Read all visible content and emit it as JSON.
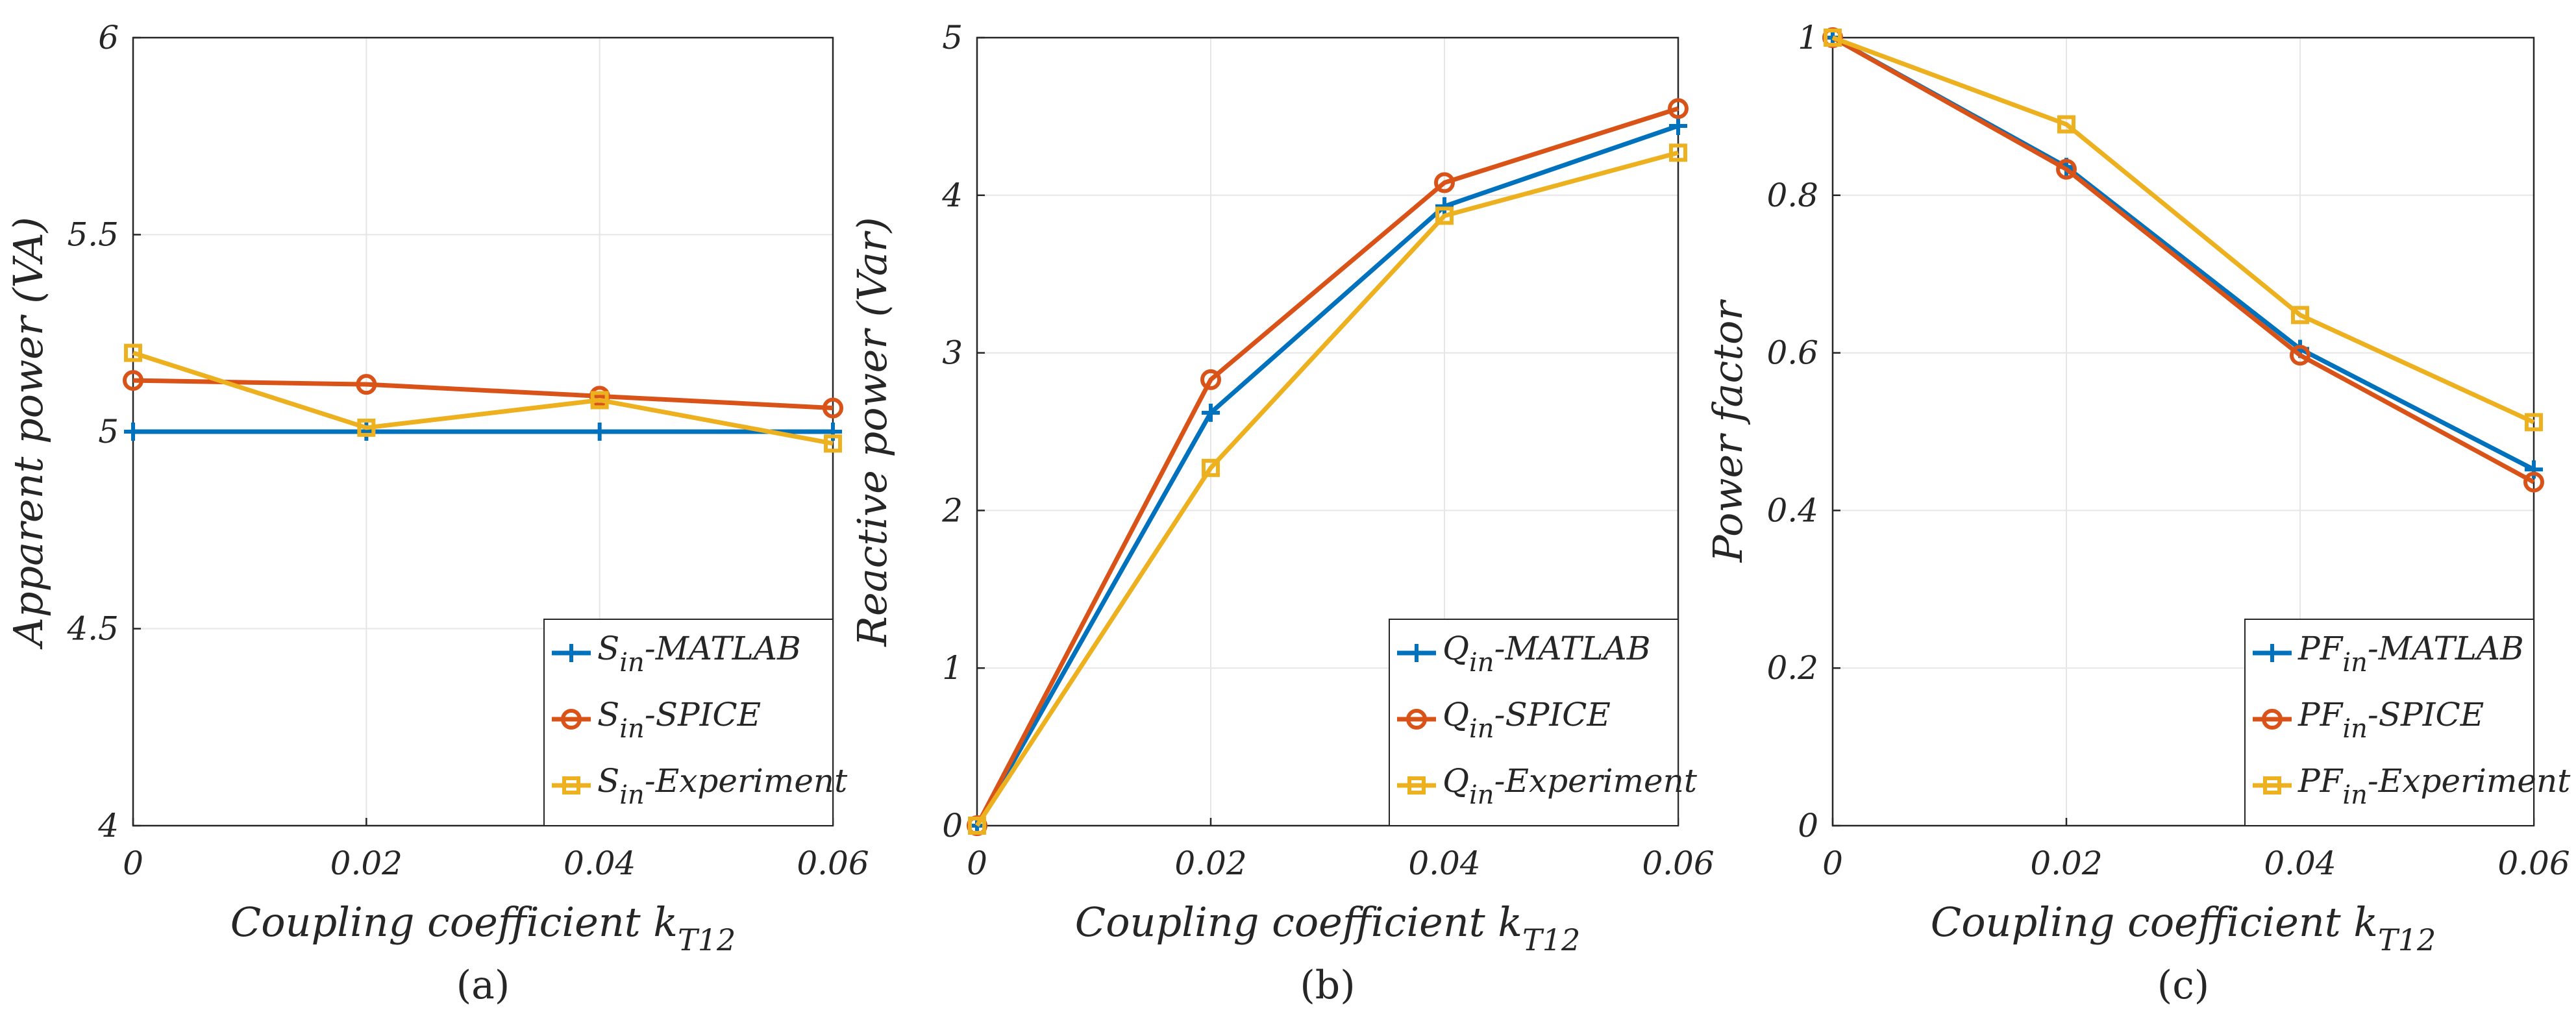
{
  "colors": {
    "matlab": "#0072BD",
    "spice": "#D95319",
    "experiment": "#EDB120",
    "axis": "#262626",
    "grid": "#e6e6e6"
  },
  "chart_data": [
    {
      "type": "line",
      "panel_label": "(a)",
      "x": [
        0,
        0.02,
        0.04,
        0.06
      ],
      "x_tick_labels": [
        "0",
        "0.02",
        "0.04",
        "0.06"
      ],
      "xlim": [
        0,
        0.06
      ],
      "ylim": [
        4,
        6
      ],
      "y_ticks": [
        4,
        4.5,
        5,
        5.5,
        6
      ],
      "y_tick_labels": [
        "4",
        "4.5",
        "5",
        "5.5",
        "6"
      ],
      "xlabel": "Coupling coefficient k",
      "xlabel_sub": "T12",
      "ylabel": "Apparent power (VA)",
      "grid": true,
      "legend_position": "bottom-right",
      "series": [
        {
          "name": "S",
          "name_sub": "in",
          "name_suffix": "-MATLAB",
          "color_key": "matlab",
          "marker": "plus",
          "values": [
            5.0,
            5.0,
            5.0,
            5.0
          ]
        },
        {
          "name": "S",
          "name_sub": "in",
          "name_suffix": "-SPICE",
          "color_key": "spice",
          "marker": "circle",
          "values": [
            5.13,
            5.12,
            5.09,
            5.06
          ]
        },
        {
          "name": "S",
          "name_sub": "in",
          "name_suffix": "-Experiment",
          "color_key": "experiment",
          "marker": "square",
          "values": [
            5.2,
            5.01,
            5.08,
            4.97
          ]
        }
      ]
    },
    {
      "type": "line",
      "panel_label": "(b)",
      "x": [
        0,
        0.02,
        0.04,
        0.06
      ],
      "x_tick_labels": [
        "0",
        "0.02",
        "0.04",
        "0.06"
      ],
      "xlim": [
        0,
        0.06
      ],
      "ylim": [
        0,
        5
      ],
      "y_ticks": [
        0,
        1,
        2,
        3,
        4,
        5
      ],
      "y_tick_labels": [
        "0",
        "1",
        "2",
        "3",
        "4",
        "5"
      ],
      "xlabel": "Coupling coefficient k",
      "xlabel_sub": "T12",
      "ylabel": "Reactive power (Var)",
      "grid": true,
      "legend_position": "bottom-right",
      "series": [
        {
          "name": "Q",
          "name_sub": "in",
          "name_suffix": "-MATLAB",
          "color_key": "matlab",
          "marker": "plus",
          "values": [
            0,
            2.62,
            3.93,
            4.44
          ]
        },
        {
          "name": "Q",
          "name_sub": "in",
          "name_suffix": "-SPICE",
          "color_key": "spice",
          "marker": "circle",
          "values": [
            0,
            2.83,
            4.08,
            4.55
          ]
        },
        {
          "name": "Q",
          "name_sub": "in",
          "name_suffix": "-Experiment",
          "color_key": "experiment",
          "marker": "square",
          "values": [
            0,
            2.27,
            3.87,
            4.27
          ]
        }
      ]
    },
    {
      "type": "line",
      "panel_label": "(c)",
      "x": [
        0,
        0.02,
        0.04,
        0.06
      ],
      "x_tick_labels": [
        "0",
        "0.02",
        "0.04",
        "0.06"
      ],
      "xlim": [
        0,
        0.06
      ],
      "ylim": [
        0,
        1
      ],
      "y_ticks": [
        0,
        0.2,
        0.4,
        0.6,
        0.8,
        1
      ],
      "y_tick_labels": [
        "0",
        "0.2",
        "0.4",
        "0.6",
        "0.8",
        "1"
      ],
      "xlabel": "Coupling coefficient k",
      "xlabel_sub": "T12",
      "ylabel": "Power factor",
      "grid": true,
      "legend_position": "bottom-right",
      "series": [
        {
          "name": "PF",
          "name_sub": "in",
          "name_suffix": "-MATLAB",
          "color_key": "matlab",
          "marker": "plus",
          "values": [
            1.0,
            0.836,
            0.605,
            0.452
          ]
        },
        {
          "name": "PF",
          "name_sub": "in",
          "name_suffix": "-SPICE",
          "color_key": "spice",
          "marker": "circle",
          "values": [
            1.0,
            0.833,
            0.597,
            0.436
          ]
        },
        {
          "name": "PF",
          "name_sub": "in",
          "name_suffix": "-Experiment",
          "color_key": "experiment",
          "marker": "square",
          "values": [
            1.0,
            0.89,
            0.648,
            0.512
          ]
        }
      ]
    }
  ]
}
